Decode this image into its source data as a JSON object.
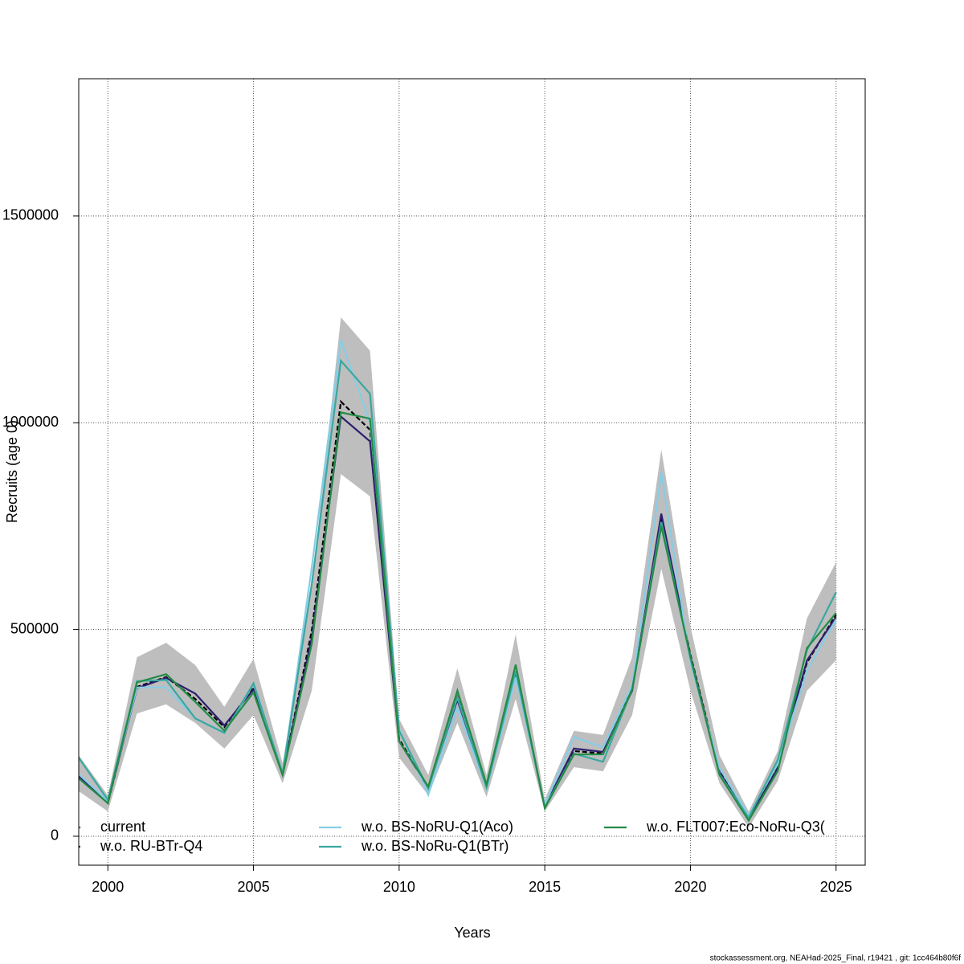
{
  "chart_data": {
    "type": "line",
    "x_label": "Years",
    "y_label": "Recruits (age 0)",
    "x": [
      1999,
      2000,
      2001,
      2002,
      2003,
      2004,
      2005,
      2006,
      2007,
      2008,
      2009,
      2010,
      2011,
      2012,
      2013,
      2014,
      2015,
      2016,
      2017,
      2018,
      2019,
      2020,
      2021,
      2022,
      2023,
      2024,
      2025
    ],
    "xlim": [
      1999,
      2026
    ],
    "xticks": [
      2000,
      2005,
      2010,
      2015,
      2020,
      2025
    ],
    "ylim": [
      -70000,
      1832000
    ],
    "yticks": [
      0,
      500000,
      1000000,
      1500000
    ],
    "grid": true,
    "confidence_band": {
      "color": "#bebebe",
      "lower": [
        109000,
        60000,
        297000,
        319000,
        274000,
        212000,
        293000,
        128000,
        352000,
        876000,
        822000,
        190000,
        99000,
        274000,
        95000,
        332000,
        60000,
        167000,
        157000,
        293000,
        647000,
        352000,
        128000,
        21000,
        134000,
        352000,
        426000
      ],
      "upper": [
        196000,
        99000,
        433000,
        468000,
        414000,
        313000,
        429000,
        177000,
        604000,
        1255000,
        1174000,
        284000,
        148000,
        406000,
        148000,
        488000,
        89000,
        255000,
        245000,
        433000,
        935000,
        507000,
        196000,
        60000,
        206000,
        527000,
        663000
      ]
    },
    "series": [
      {
        "name": "current",
        "color": "#000000",
        "dash": true,
        "values": [
          147000,
          80000,
          361000,
          385000,
          332000,
          264000,
          361000,
          148000,
          497000,
          1051000,
          983000,
          235000,
          118000,
          336000,
          122000,
          400000,
          70000,
          206000,
          200000,
          356000,
          770000,
          439000,
          157000,
          41000,
          167000,
          420000,
          536000
        ]
      },
      {
        "name": "w.o. RU-BTr-Q4",
        "color": "#2d1e6e",
        "dash": false,
        "values": [
          145000,
          82000,
          358000,
          383000,
          345000,
          268000,
          355000,
          150000,
          480000,
          1015000,
          955000,
          230000,
          118000,
          330000,
          120000,
          395000,
          72000,
          212000,
          204000,
          352000,
          780000,
          435000,
          155000,
          42000,
          165000,
          425000,
          530000
        ]
      },
      {
        "name": "w.o. BS-NoRU-Q1(Aco)",
        "color": "#87cde6",
        "dash": false,
        "values": [
          150000,
          85000,
          360000,
          360000,
          285000,
          250000,
          368000,
          150000,
          650000,
          1200000,
          1000000,
          260000,
          100000,
          310000,
          115000,
          385000,
          75000,
          240000,
          215000,
          365000,
          880000,
          420000,
          165000,
          50000,
          175000,
          400000,
          525000
        ]
      },
      {
        "name": "w.o. BS-NoRu-Q1(BTr)",
        "color": "#3aa8a0",
        "dash": false,
        "values": [
          190000,
          88000,
          375000,
          378000,
          285000,
          250000,
          370000,
          152000,
          610000,
          1150000,
          1070000,
          255000,
          115000,
          335000,
          118000,
          400000,
          70000,
          200000,
          180000,
          355000,
          760000,
          430000,
          150000,
          45000,
          185000,
          450000,
          590000
        ]
      },
      {
        "name": "w.o. FLT007:Eco-NoRu-Q3(",
        "color": "#238b45",
        "dash": false,
        "values": [
          140000,
          80000,
          372000,
          392000,
          325000,
          255000,
          348000,
          148000,
          465000,
          1025000,
          1010000,
          230000,
          120000,
          352000,
          125000,
          415000,
          68000,
          198000,
          198000,
          355000,
          750000,
          435000,
          148000,
          38000,
          158000,
          455000,
          540000
        ]
      }
    ],
    "footer": "stockassessment.org, NEAHad-2025_Final, r19421 , git: 1cc464b80f6f"
  }
}
